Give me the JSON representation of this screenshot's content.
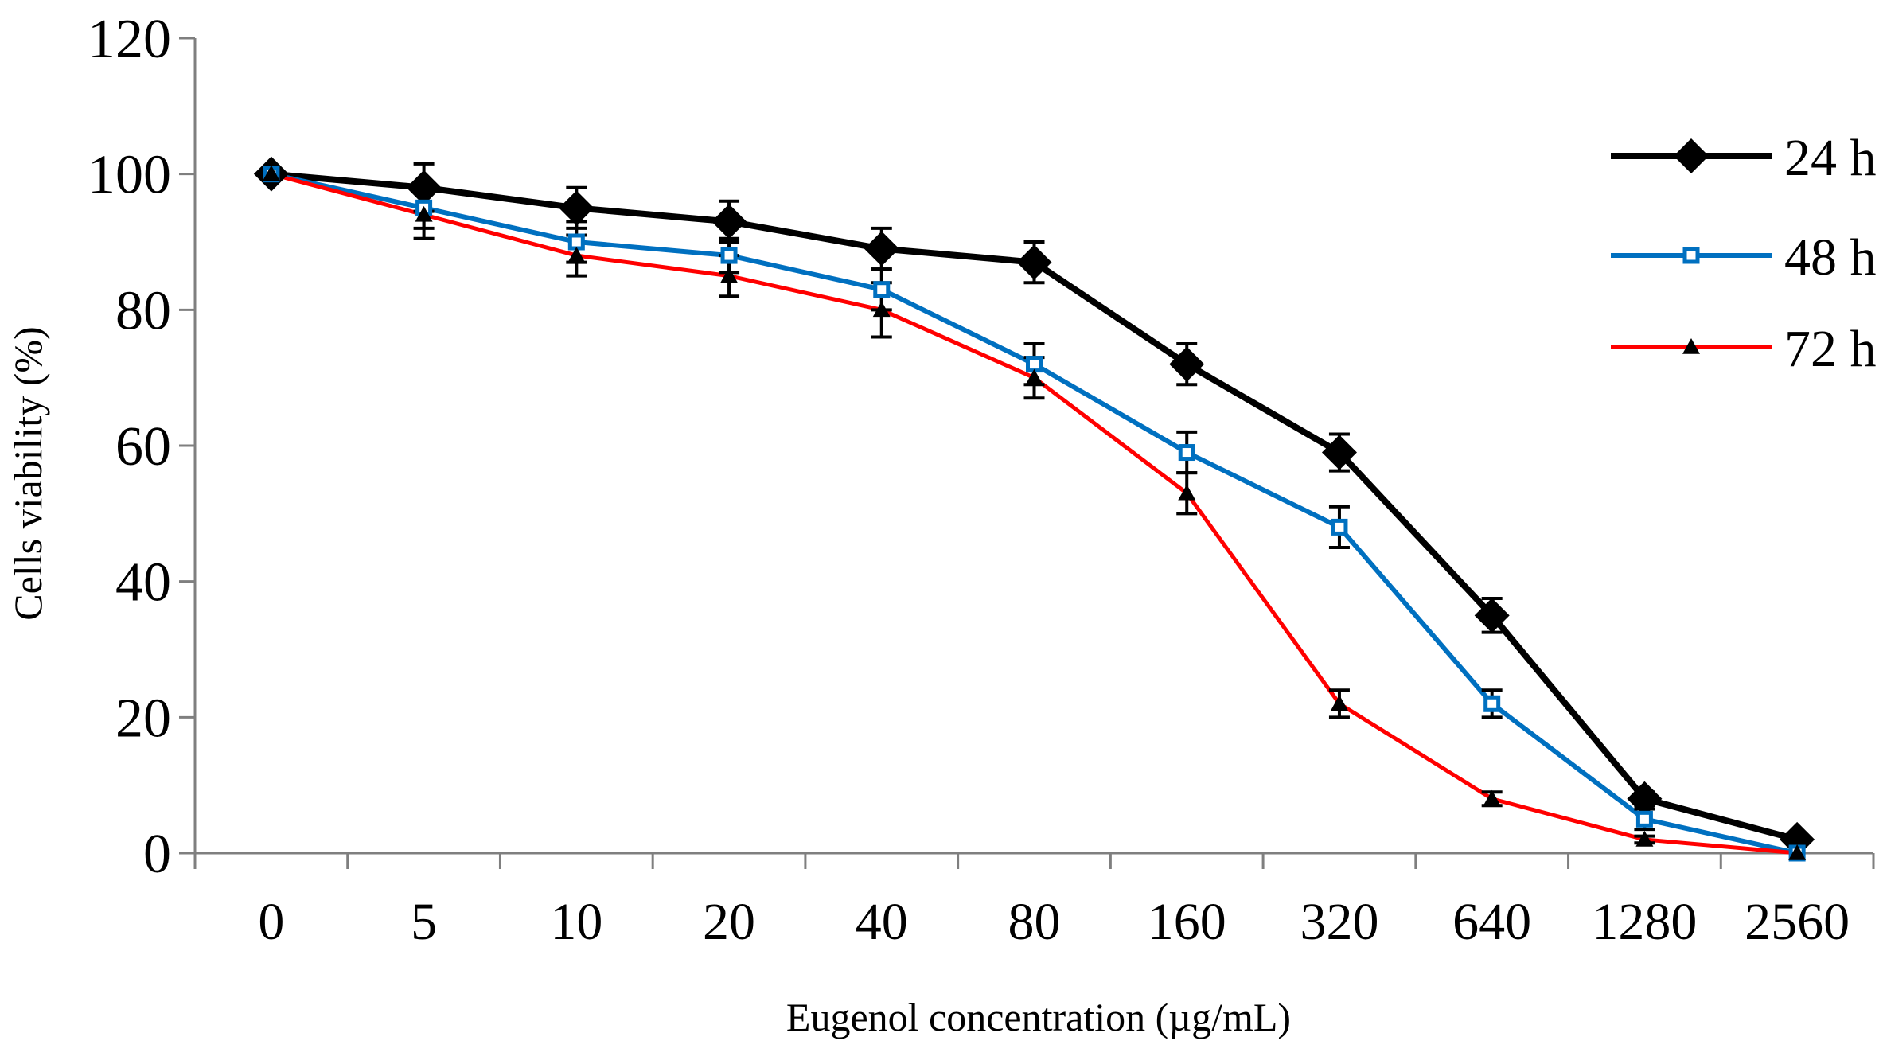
{
  "chart_data": {
    "type": "line",
    "title": "",
    "xlabel": "Eugenol concentration (µg/mL)",
    "ylabel": "Cells viability (%)",
    "categories": [
      "0",
      "5",
      "10",
      "20",
      "40",
      "80",
      "160",
      "320",
      "640",
      "1280",
      "2560"
    ],
    "ylim": [
      0,
      120
    ],
    "yticks": [
      0,
      20,
      40,
      60,
      80,
      100,
      120
    ],
    "grid": false,
    "legend_position": "top-right",
    "series": [
      {
        "name": "24 h",
        "color": "#000000",
        "marker": "diamond",
        "values": [
          100,
          98,
          95,
          93,
          89,
          87,
          72,
          59,
          35,
          8,
          2
        ],
        "errors": [
          0,
          3.5,
          3.0,
          3.0,
          3.0,
          3.0,
          3.0,
          2.7,
          2.5,
          1.0,
          0
        ]
      },
      {
        "name": "48 h",
        "color": "#0070C0",
        "marker": "square",
        "values": [
          100,
          95,
          90,
          88,
          83,
          72,
          59,
          48,
          22,
          5,
          0
        ],
        "errors": [
          0,
          3.0,
          3.0,
          2.5,
          3.0,
          3.0,
          3.0,
          3.0,
          2.0,
          1.5,
          0
        ]
      },
      {
        "name": "72 h",
        "color": "#FF0000",
        "marker": "triangle",
        "values": [
          100,
          94,
          88,
          85,
          80,
          70,
          53,
          22,
          8,
          2,
          0
        ],
        "errors": [
          0,
          3.5,
          3.0,
          3.0,
          4.0,
          3.0,
          3.0,
          2.0,
          1.0,
          0.5,
          0
        ]
      }
    ]
  }
}
